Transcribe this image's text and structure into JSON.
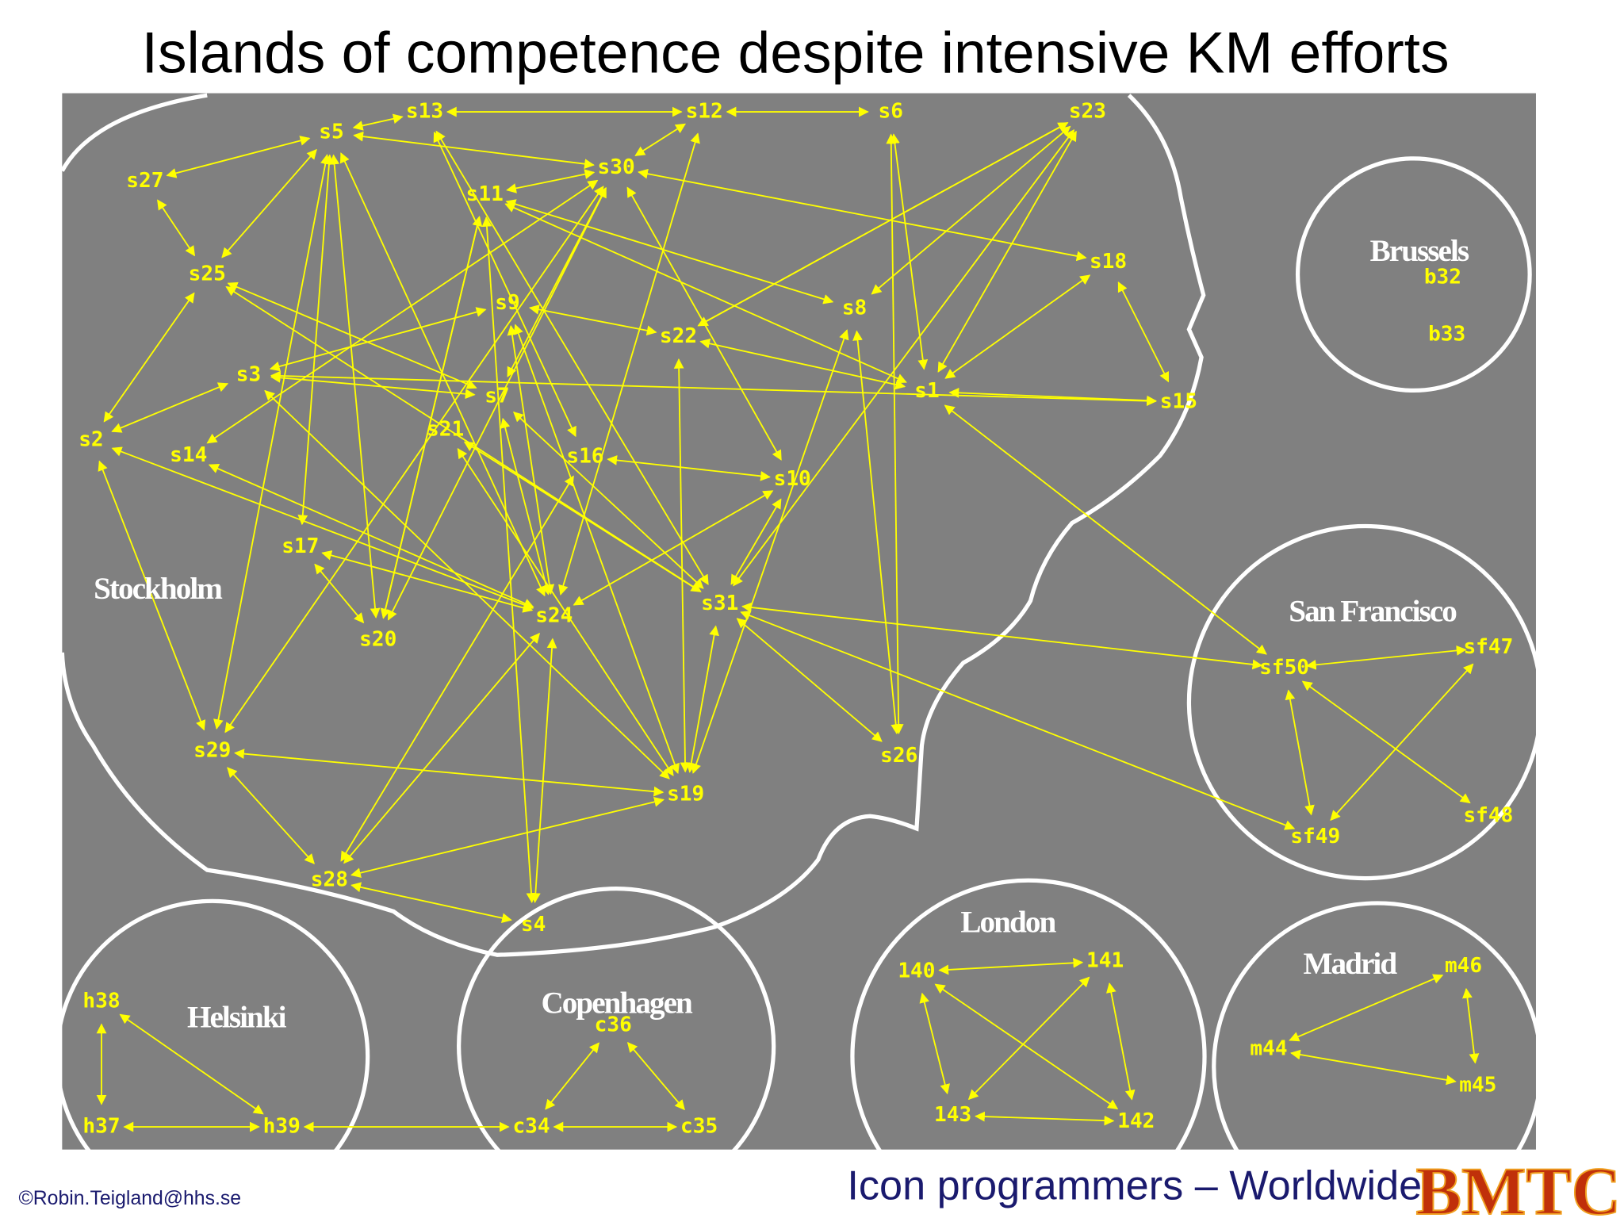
{
  "title": "Islands of competence despite intensive KM efforts",
  "regions": [
    "Stockholm",
    "Brussels",
    "San Francisco",
    "London",
    "Madrid",
    "Helsinki",
    "Copenhagen"
  ],
  "nodes": [
    "s13",
    "s12",
    "s6",
    "s23",
    "s5",
    "s30",
    "s27",
    "s11",
    "s18",
    "s25",
    "s9",
    "s8",
    "s22",
    "s3",
    "s1",
    "s15",
    "s7",
    "s2",
    "s14",
    "s16",
    "s21",
    "s10",
    "s17",
    "s31",
    "s24",
    "s20",
    "s29",
    "s26",
    "s19",
    "s28",
    "s4",
    "sf50",
    "sf47",
    "sf49",
    "sf48",
    "b32",
    "b33",
    "h38",
    "h37",
    "h39",
    "c36",
    "c34",
    "c35",
    "140",
    "141",
    "143",
    "142",
    "m46",
    "m44",
    "m45"
  ],
  "footer_left": "©Robin.Teigland@hhs.se",
  "footer_right": "Icon programmers – Worldwide",
  "logo": "BMTC"
}
